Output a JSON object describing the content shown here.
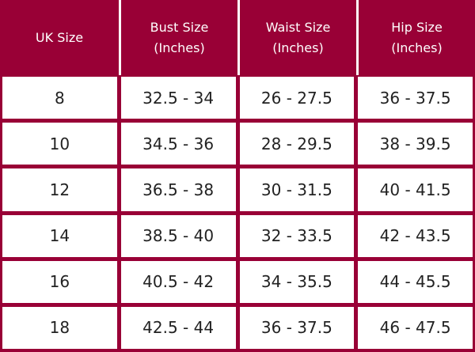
{
  "table": {
    "header": [
      [
        "UK Size"
      ],
      [
        "Bust Size",
        "(Inches)"
      ],
      [
        "Waist Size",
        "(Inches)"
      ],
      [
        "Hip Size",
        "(Inches)"
      ]
    ],
    "rows": [
      [
        "8",
        "32.5 - 34",
        "26 - 27.5",
        "36 - 37.5"
      ],
      [
        "10",
        "34.5 - 36",
        "28 - 29.5",
        "38 - 39.5"
      ],
      [
        "12",
        "36.5 - 38",
        "30 - 31.5",
        "40 - 41.5"
      ],
      [
        "14",
        "38.5 - 40",
        "32 - 33.5",
        "42 - 43.5"
      ],
      [
        "16",
        "40.5 - 42",
        "34 - 35.5",
        "44 - 45.5"
      ],
      [
        "18",
        "42.5 - 44",
        "36 - 37.5",
        "46 - 47.5"
      ]
    ]
  }
}
